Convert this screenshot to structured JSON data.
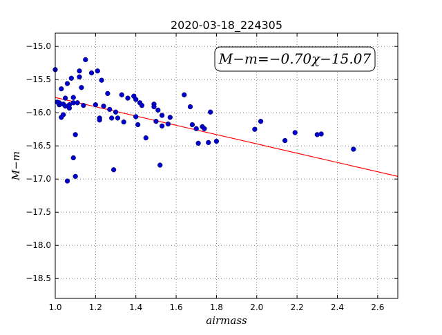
{
  "chart_data": {
    "type": "scatter",
    "title": "2020-03-18_224305",
    "xlabel": "airmass",
    "ylabel": "M−m",
    "xlim": [
      1.0,
      2.7
    ],
    "ylim": [
      -18.8,
      -14.8
    ],
    "y_inverted": true,
    "grid": true,
    "x_ticks": [
      "1.0",
      "1.2",
      "1.4",
      "1.6",
      "1.8",
      "2.0",
      "2.2",
      "2.4",
      "2.6"
    ],
    "y_ticks": [
      "−15.0",
      "−15.5",
      "−16.0",
      "−16.5",
      "−17.0",
      "−17.5",
      "−18.0",
      "−18.5"
    ],
    "annotation": "M−m=−0.70χ−15.07",
    "fit": {
      "slope": -0.7,
      "intercept": -15.07,
      "color": "#ff0000"
    },
    "point_color": "#0000cc",
    "series": [
      {
        "x": [
          1.0,
          1.01,
          1.02,
          1.02,
          1.03,
          1.03,
          1.04,
          1.04,
          1.05,
          1.05,
          1.06,
          1.06,
          1.07,
          1.07,
          1.08,
          1.09,
          1.09,
          1.09,
          1.1,
          1.1,
          1.11,
          1.12,
          1.12,
          1.13,
          1.14,
          1.15,
          1.18,
          1.2,
          1.21,
          1.22,
          1.22,
          1.23,
          1.24,
          1.26,
          1.27,
          1.28,
          1.29,
          1.3,
          1.31,
          1.33,
          1.34,
          1.36,
          1.39,
          1.4,
          1.4,
          1.41,
          1.42,
          1.43,
          1.45,
          1.49,
          1.49,
          1.5,
          1.51,
          1.52,
          1.53,
          1.53,
          1.56,
          1.57,
          1.64,
          1.67,
          1.68,
          1.7,
          1.71,
          1.73,
          1.74,
          1.76,
          1.77,
          1.8,
          1.99,
          2.02,
          2.14,
          2.19,
          2.3,
          2.32,
          2.48
        ],
        "y": [
          -15.35,
          -15.84,
          -15.88,
          -15.85,
          -15.64,
          -16.07,
          -16.03,
          -15.87,
          -15.78,
          -15.9,
          -17.03,
          -15.56,
          -15.93,
          -15.88,
          -15.48,
          -15.85,
          -16.68,
          -15.77,
          -16.33,
          -16.96,
          -15.85,
          -15.46,
          -15.37,
          -15.62,
          -15.89,
          -15.2,
          -15.4,
          -15.88,
          -15.37,
          -16.08,
          -16.11,
          -15.51,
          -15.9,
          -15.71,
          -15.95,
          -16.08,
          -16.86,
          -15.99,
          -16.08,
          -15.73,
          -16.14,
          -15.78,
          -15.75,
          -15.8,
          -16.06,
          -16.18,
          -15.85,
          -15.89,
          -16.38,
          -15.87,
          -15.91,
          -16.13,
          -15.96,
          -16.79,
          -16.2,
          -16.04,
          -16.17,
          -16.07,
          -15.73,
          -15.91,
          -16.18,
          -16.24,
          -16.46,
          -16.21,
          -16.24,
          -16.45,
          -15.99,
          -16.43,
          -16.25,
          -16.13,
          -16.42,
          -16.3,
          -16.33,
          -16.32,
          -16.55
        ]
      }
    ]
  }
}
